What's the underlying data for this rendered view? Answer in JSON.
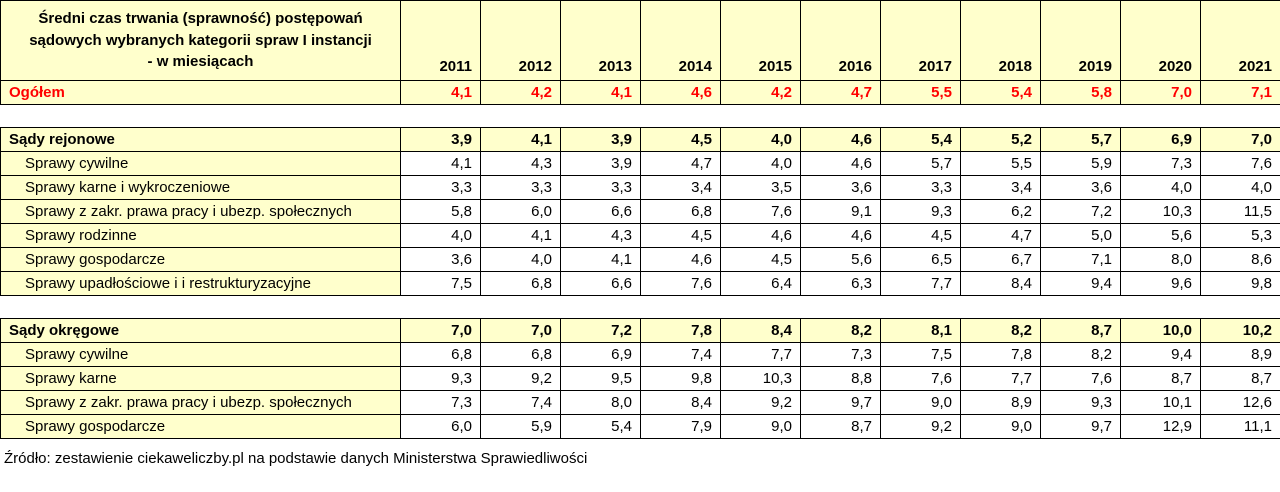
{
  "header": {
    "title_lines": [
      "Średni czas trwania (sprawność) postępowań",
      "sądowych wybranych kategorii spraw I instancji",
      "- w miesiącach"
    ]
  },
  "chart_data": {
    "type": "table",
    "title": "Średni czas trwania (sprawność) postępowań sądowych wybranych kategorii spraw I instancji - w miesiącach",
    "unit": "miesiące",
    "columns": [
      "2011",
      "2012",
      "2013",
      "2014",
      "2015",
      "2016",
      "2017",
      "2018",
      "2019",
      "2020",
      "2021"
    ],
    "rows": [
      {
        "label": "Ogółem",
        "style": "total",
        "values": [
          "4,1",
          "4,2",
          "4,1",
          "4,6",
          "4,2",
          "4,7",
          "5,5",
          "5,4",
          "5,8",
          "7,0",
          "7,1"
        ]
      },
      {
        "style": "spacer"
      },
      {
        "label": "Sądy rejonowe",
        "style": "group",
        "values": [
          "3,9",
          "4,1",
          "3,9",
          "4,5",
          "4,0",
          "4,6",
          "5,4",
          "5,2",
          "5,7",
          "6,9",
          "7,0"
        ]
      },
      {
        "label": "Sprawy cywilne",
        "style": "detail",
        "values": [
          "4,1",
          "4,3",
          "3,9",
          "4,7",
          "4,0",
          "4,6",
          "5,7",
          "5,5",
          "5,9",
          "7,3",
          "7,6"
        ]
      },
      {
        "label": "Sprawy karne i wykroczeniowe",
        "style": "detail",
        "values": [
          "3,3",
          "3,3",
          "3,3",
          "3,4",
          "3,5",
          "3,6",
          "3,3",
          "3,4",
          "3,6",
          "4,0",
          "4,0"
        ]
      },
      {
        "label": "Sprawy z zakr. prawa pracy i ubezp. społecznych",
        "style": "detail",
        "values": [
          "5,8",
          "6,0",
          "6,6",
          "6,8",
          "7,6",
          "9,1",
          "9,3",
          "6,2",
          "7,2",
          "10,3",
          "11,5"
        ]
      },
      {
        "label": "Sprawy rodzinne",
        "style": "detail",
        "values": [
          "4,0",
          "4,1",
          "4,3",
          "4,5",
          "4,6",
          "4,6",
          "4,5",
          "4,7",
          "5,0",
          "5,6",
          "5,3"
        ]
      },
      {
        "label": "Sprawy gospodarcze",
        "style": "detail",
        "values": [
          "3,6",
          "4,0",
          "4,1",
          "4,6",
          "4,5",
          "5,6",
          "6,5",
          "6,7",
          "7,1",
          "8,0",
          "8,6"
        ]
      },
      {
        "label": "Sprawy upadłościowe i  i restrukturyzacyjne",
        "style": "detail",
        "values": [
          "7,5",
          "6,8",
          "6,6",
          "7,6",
          "6,4",
          "6,3",
          "7,7",
          "8,4",
          "9,4",
          "9,6",
          "9,8"
        ]
      },
      {
        "style": "spacer"
      },
      {
        "label": "Sądy okręgowe",
        "style": "group",
        "values": [
          "7,0",
          "7,0",
          "7,2",
          "7,8",
          "8,4",
          "8,2",
          "8,1",
          "8,2",
          "8,7",
          "10,0",
          "10,2"
        ]
      },
      {
        "label": "Sprawy cywilne",
        "style": "detail",
        "values": [
          "6,8",
          "6,8",
          "6,9",
          "7,4",
          "7,7",
          "7,3",
          "7,5",
          "7,8",
          "8,2",
          "9,4",
          "8,9"
        ]
      },
      {
        "label": "Sprawy karne",
        "style": "detail",
        "values": [
          "9,3",
          "9,2",
          "9,5",
          "9,8",
          "10,3",
          "8,8",
          "7,6",
          "7,7",
          "7,6",
          "8,7",
          "8,7"
        ]
      },
      {
        "label": "Sprawy z zakr. prawa pracy i ubezp. społecznych",
        "style": "detail",
        "values": [
          "7,3",
          "7,4",
          "8,0",
          "8,4",
          "9,2",
          "9,7",
          "9,0",
          "8,9",
          "9,3",
          "10,1",
          "12,6"
        ]
      },
      {
        "label": "Sprawy gospodarcze",
        "style": "detail",
        "values": [
          "6,0",
          "5,9",
          "5,4",
          "7,9",
          "9,0",
          "8,7",
          "9,2",
          "9,0",
          "9,7",
          "12,9",
          "11,1"
        ]
      }
    ]
  },
  "source_note": "Źródło: zestawienie ciekaweliczby.pl na podstawie danych Ministerstwa Sprawiedliwości",
  "colors": {
    "cell_bg": "#FFFFCC",
    "total_text": "#FF0000",
    "border": "#000000",
    "text": "#000000",
    "detail_value_bg": "#FFFFFF"
  }
}
